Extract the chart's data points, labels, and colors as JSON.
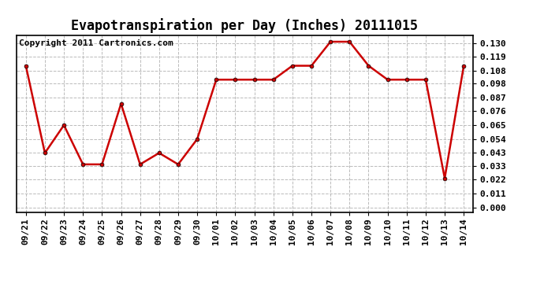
{
  "title": "Evapotranspiration per Day (Inches) 20111015",
  "copyright": "Copyright 2011 Cartronics.com",
  "x_labels": [
    "09/21",
    "09/22",
    "09/23",
    "09/24",
    "09/25",
    "09/26",
    "09/27",
    "09/28",
    "09/29",
    "09/30",
    "10/01",
    "10/02",
    "10/03",
    "10/04",
    "10/05",
    "10/06",
    "10/07",
    "10/08",
    "10/09",
    "10/10",
    "10/11",
    "10/12",
    "10/13",
    "10/14"
  ],
  "y_values": [
    0.112,
    0.043,
    0.065,
    0.034,
    0.034,
    0.082,
    0.034,
    0.043,
    0.034,
    0.054,
    0.101,
    0.101,
    0.101,
    0.101,
    0.112,
    0.112,
    0.131,
    0.131,
    0.112,
    0.101,
    0.101,
    0.101,
    0.023,
    0.112
  ],
  "line_color": "#cc0000",
  "marker_color": "#cc0000",
  "background_color": "#ffffff",
  "grid_color": "#bbbbbb",
  "yticks": [
    0.0,
    0.011,
    0.022,
    0.033,
    0.043,
    0.054,
    0.065,
    0.076,
    0.087,
    0.098,
    0.108,
    0.119,
    0.13
  ],
  "title_fontsize": 12,
  "tick_fontsize": 8,
  "copyright_fontsize": 8
}
